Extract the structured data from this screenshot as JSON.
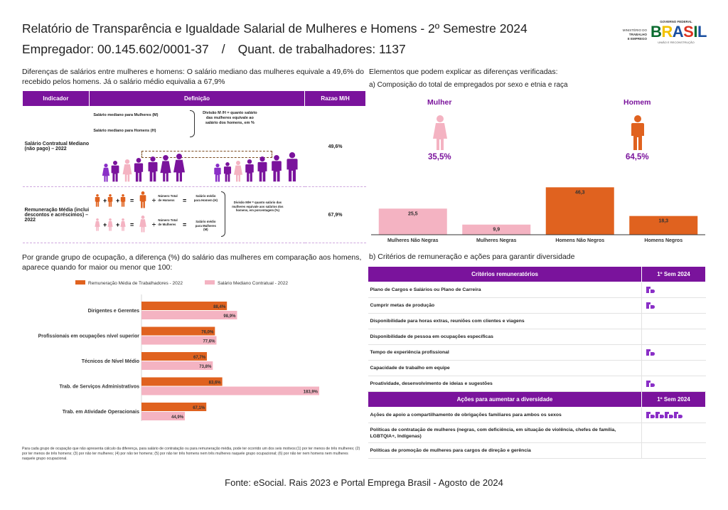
{
  "header": {
    "title": "Relatório de Transparência e Igualdade Salarial de Mulheres e Homens - 2º Semestre 2024",
    "employer": "Empregador: 00.145.602/0001-37",
    "separator": "/",
    "workers": "Quant. de trabalhadores: 1137"
  },
  "logos": {
    "ministry": [
      "MINISTÉRIO DO",
      "TRABALHO",
      "E EMPREGO"
    ],
    "gov_top": "GOVERNO FEDERAL",
    "gov_letters": [
      "B",
      "R",
      "A",
      "S",
      "I",
      "L"
    ],
    "gov_bottom": "UNIÃO E RECONSTRUÇÃO"
  },
  "intro": "Diferenças de salários entre mulheres e homens: O salário mediano das mulheres equivale a 49,6% do recebido pelos homens. Já o salário médio equivalia a 67,9%",
  "indicators": {
    "headers": [
      "Indicador",
      "Definição",
      "Razao M/H"
    ],
    "row1": {
      "label": "Salário Contratual Mediano (não pago) – 2022",
      "def_women": "Salário mediano para Mulheres (M)",
      "def_men": "Salário mediano para Homens (H)",
      "def_div": "Divisão M /H = quanto salário das mulheres equivale ao salário dos homens, em %",
      "value": "49,6%"
    },
    "row2": {
      "label": "Remuneração Média (inclui descontos e acréscimos) – 2022",
      "men_total": "Número Total de Homens",
      "men_avg": "Salário médio para Homem (H)",
      "women_total": "Número Total de Mulheres",
      "women_avg": "Salário médio para Mulheres (M)",
      "div": "Divisão M/H = quanto salário das mulheres equivale aos salários dos homens, em porcentagem (%)",
      "value": "67,9%"
    }
  },
  "composition": {
    "section_title": "Elementos que podem explicar as diferenças verificadas:",
    "subtitle": "a) Composição do total de empregados por sexo e etnia e raça",
    "women_label": "Mulher",
    "men_label": "Homem",
    "women_pct": "35,5%",
    "men_pct": "64,5%"
  },
  "chart_data": [
    {
      "type": "bar",
      "categories": [
        "Mulheres Não Negras",
        "Mulheres Negras",
        "Homens Não Negros",
        "Homens Negros"
      ],
      "values": [
        25.5,
        9.9,
        46.3,
        18.3
      ],
      "value_labels": [
        "25,5",
        "9,9",
        "46,3",
        "18,3"
      ],
      "colors": [
        "#f4b3c2",
        "#f4b3c2",
        "#e0621f",
        "#e0621f"
      ],
      "ylim": [
        0,
        50
      ]
    },
    {
      "type": "bar",
      "orientation": "horizontal",
      "title": "Por grande grupo de ocupação, a diferença (%) do salário das mulheres em comparação aos homens, aparece quando for maior ou menor que 100:",
      "categories": [
        "Dirigentes e Gerentes",
        "Profissionais em ocupações nível superior",
        "Técnicos de Nível Médio",
        "Trab. de Serviços Administrativos",
        "Trab. em Atividade Operacionais"
      ],
      "series": [
        {
          "name": "Remuneração Média de Trabalhadores - 2022",
          "color": "#e0621f",
          "values": [
            88.4,
            76.0,
            67.7,
            83.6,
            67.1
          ],
          "labels": [
            "88,4%",
            "76,0%",
            "67,7%",
            "83,6%",
            "67,1%"
          ]
        },
        {
          "name": "Salário Mediano Contratual - 2022",
          "color": "#f4b3c2",
          "values": [
            98.9,
            77.6,
            73.8,
            183.9,
            44.9
          ],
          "labels": [
            "98,9%",
            "77,6%",
            "73,8%",
            "183,9%",
            "44,9%"
          ]
        }
      ],
      "legend": "top"
    }
  ],
  "footnote": "Para cada grupo de ocupação que não apresenta cálculo da diferença, para salário de contratação ou para remuneração média, pode ter ocorrido um dos seis motivos:(1) por ter menos de três mulheres; (2) por ter menos de três homens; (3) por não ter mulheres; (4) por não ter homens; (5) por não ter três homens nem três mulheres naquele grupo ocupacional; (6) por não ter nem homens nem mulheres naquele grupo ocupacional.",
  "criteria": {
    "section_title": "b) Critérios de remuneração e ações para garantir diversidade",
    "header": "Critérios remuneratórios",
    "col": "1º Sem 2024",
    "rows": [
      {
        "label": "Plano de Cargos e Salários ou Plano de Carreira",
        "marks": 1
      },
      {
        "label": "Cumprir metas de produção",
        "marks": 1
      },
      {
        "label": "Disponibilidade para horas extras, reuniões com clientes e viagens",
        "marks": 0
      },
      {
        "label": "Disponibilidade de pessoa em ocupações específicas",
        "marks": 0
      },
      {
        "label": "Tempo de experiência profissional",
        "marks": 1
      },
      {
        "label": "Capacidade de trabalho em equipe",
        "marks": 0
      },
      {
        "label": "Proatividade, desenvolvimento de ideias e sugestões",
        "marks": 1
      }
    ]
  },
  "actions": {
    "header": "Ações para aumentar a diversidade",
    "col": "1º Sem 2024",
    "rows": [
      {
        "label": "Ações de apoio a compartilhamento de obrigações familiares para ambos os sexos",
        "marks": 4
      },
      {
        "label": "Políticas de contratação de mulheres (negras, com deficiência, em situação de violência, chefes de família, LGBTQIA+, Indígenas)",
        "marks": 0
      },
      {
        "label": "Políticas de promoção de mulheres para cargos de direção e gerência",
        "marks": 0
      }
    ]
  },
  "source": "Fonte: eSocial. Rais 2023 e Portal Emprega Brasil - Agosto de 2024",
  "colors": {
    "purple": "#7a139c",
    "orange": "#e0621f",
    "pink": "#f4b3c2",
    "violet": "#8a2fc7"
  }
}
